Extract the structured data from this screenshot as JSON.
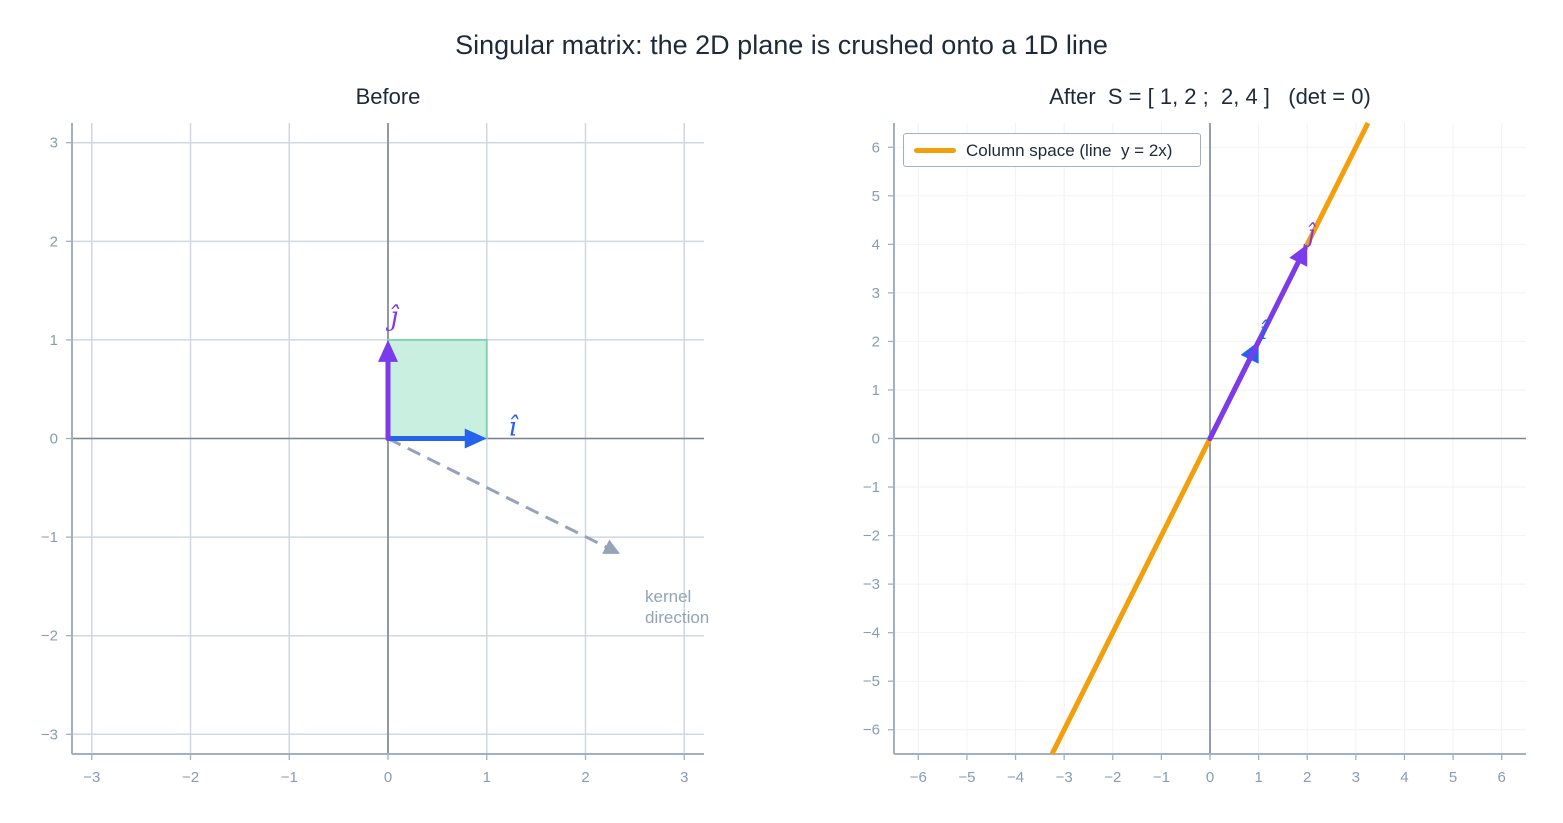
{
  "title": "Singular matrix: the 2D plane is crushed onto a 1D line",
  "colors": {
    "i_hat": "#2563eb",
    "j_hat": "#7c3aed",
    "column_space": "#f59e0b",
    "unit_square_fill": "#c9efe0",
    "unit_square_edge": "#86d1b3",
    "kernel": "#94a3b8",
    "grid": "#d0d7e2",
    "axis_zero": "#7b8594",
    "spine": "#a3b0c2",
    "tick_label": "#8a9bb5"
  },
  "chart_data": [
    {
      "type": "line",
      "panel": "left",
      "title": "Before",
      "xlim": [
        -3.2,
        3.2
      ],
      "ylim": [
        -3.2,
        3.2
      ],
      "xticks": [
        -3,
        -2,
        -1,
        0,
        1,
        2,
        3
      ],
      "yticks": [
        -3,
        -2,
        -1,
        0,
        1,
        2,
        3
      ],
      "xtick_labels": [
        "−3",
        "−2",
        "−1",
        "0",
        "1",
        "2",
        "3"
      ],
      "ytick_labels": [
        "−3",
        "−2",
        "−1",
        "0",
        "1",
        "2",
        "3"
      ],
      "grid": true,
      "vectors": [
        {
          "name": "i_hat",
          "label": "î",
          "from": [
            0,
            0
          ],
          "to": [
            1,
            0
          ]
        },
        {
          "name": "j_hat",
          "label": "ĵ",
          "from": [
            0,
            0
          ],
          "to": [
            0,
            1
          ]
        }
      ],
      "unit_square": [
        [
          0,
          0
        ],
        [
          1,
          0
        ],
        [
          1,
          1
        ],
        [
          0,
          1
        ]
      ],
      "kernel_arrow": {
        "from": [
          0,
          0
        ],
        "to": [
          2.35,
          -1.17
        ],
        "style": "dashed"
      },
      "annotations": [
        {
          "text": "kernel\ndirection",
          "x": 2.6,
          "y": -1.6
        }
      ]
    },
    {
      "type": "line",
      "panel": "right",
      "title": "After  S = [ 1, 2 ;  2, 4 ]   (det = 0)",
      "xlim": [
        -6.5,
        6.5
      ],
      "ylim": [
        -6.5,
        6.5
      ],
      "xticks": [
        -6,
        -5,
        -4,
        -3,
        -2,
        -1,
        0,
        1,
        2,
        3,
        4,
        5,
        6
      ],
      "yticks": [
        -6,
        -5,
        -4,
        -3,
        -2,
        -1,
        0,
        1,
        2,
        3,
        4,
        5,
        6
      ],
      "xtick_labels": [
        "−6",
        "−5",
        "−4",
        "−3",
        "−2",
        "−1",
        "0",
        "1",
        "2",
        "3",
        "4",
        "5",
        "6"
      ],
      "ytick_labels": [
        "−6",
        "−5",
        "−4",
        "−3",
        "−2",
        "−1",
        "0",
        "1",
        "2",
        "3",
        "4",
        "5",
        "6"
      ],
      "grid": true,
      "series": [
        {
          "name": "Column space (line  y = 2x)",
          "x": [
            -3.25,
            3.25
          ],
          "y": [
            -6.5,
            6.5
          ]
        }
      ],
      "vectors": [
        {
          "name": "i_hat",
          "label": "î",
          "from": [
            0,
            0
          ],
          "to": [
            1,
            2
          ]
        },
        {
          "name": "j_hat",
          "label": "ĵ",
          "from": [
            0,
            0
          ],
          "to": [
            2,
            4
          ]
        }
      ],
      "legend": {
        "position": "upper left",
        "entries": [
          "Column space (line  y = 2x)"
        ]
      }
    }
  ],
  "panels": {
    "left_title": "Before",
    "right_title": "After  S = [ 1, 2 ;  2, 4 ]   (det = 0)",
    "legend_label": "Column space (line  y = 2x)",
    "kernel_label": "kernel\ndirection"
  }
}
